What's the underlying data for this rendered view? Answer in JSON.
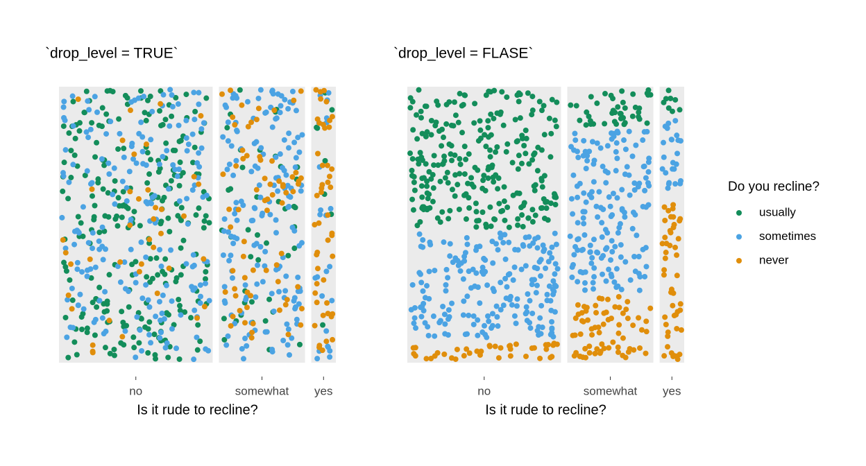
{
  "chart_data": [
    {
      "type": "jitter-mosaic",
      "title": "`drop_level = TRUE`",
      "x_label": "Is it rude to recline?",
      "mixed": true,
      "categories": [
        "no",
        "somewhat",
        "yes"
      ],
      "series": [
        {
          "name": "usually",
          "color": "#138d5a",
          "values": [
            260,
            42,
            8
          ]
        },
        {
          "name": "sometimes",
          "color": "#4ba3e3",
          "values": [
            200,
            168,
            24
          ]
        },
        {
          "name": "never",
          "color": "#e08e0b",
          "values": [
            40,
            70,
            48
          ]
        }
      ]
    },
    {
      "type": "jitter-mosaic",
      "title": "`drop_level = FLASE`",
      "x_label": "Is it rude to recline?",
      "mixed": false,
      "categories": [
        "no",
        "somewhat",
        "yes"
      ],
      "series": [
        {
          "name": "usually",
          "color": "#138d5a",
          "values": [
            260,
            42,
            8
          ]
        },
        {
          "name": "sometimes",
          "color": "#4ba3e3",
          "values": [
            200,
            168,
            24
          ]
        },
        {
          "name": "never",
          "color": "#e08e0b",
          "values": [
            40,
            70,
            48
          ]
        }
      ]
    }
  ],
  "legend": {
    "title": "Do you recline?"
  }
}
